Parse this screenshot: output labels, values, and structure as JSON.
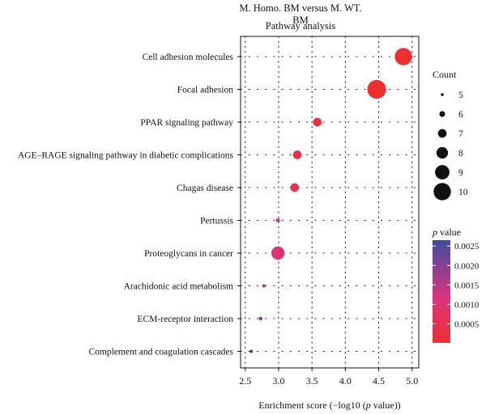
{
  "chart_data": {
    "type": "scatter",
    "title": "M. Homo. BM versus M. WT. BM",
    "subtitle": "Pathway analysis",
    "xlabel_prefix": "Enrichment score (−log10 (",
    "xlabel_italic": "p",
    "xlabel_suffix": " value))",
    "xlim": [
      2.43,
      5.1
    ],
    "xticks": [
      "2.5",
      "3.0",
      "3.5",
      "4.0",
      "4.5",
      "5.0"
    ],
    "xtick_values": [
      2.5,
      3.0,
      3.5,
      4.0,
      4.5,
      5.0
    ],
    "grid": "dotted",
    "categories": [
      "Cell adhesion molecules",
      "Focal adhesion",
      "PPAR signaling pathway",
      "AGE–RAGE signaling pathway in diabetic complications",
      "Chagas disease",
      "Pertussis",
      "Proteoglycans in cancer",
      "Arachidonic acid metabolism",
      "ECM-receptor interaction",
      "Complement and coagulation cascades"
    ],
    "points": [
      {
        "x": 4.87,
        "count": 10,
        "p": 1e-05
      },
      {
        "x": 4.47,
        "count": 10.5,
        "p": 3e-05
      },
      {
        "x": 3.58,
        "count": 7,
        "p": 0.00026
      },
      {
        "x": 3.28,
        "count": 7,
        "p": 0.00052
      },
      {
        "x": 3.24,
        "count": 7,
        "p": 0.00058
      },
      {
        "x": 2.99,
        "count": 5.4,
        "p": 0.00102
      },
      {
        "x": 2.99,
        "count": 8.6,
        "p": 0.00102
      },
      {
        "x": 2.78,
        "count": 5.2,
        "p": 0.00166
      },
      {
        "x": 2.73,
        "count": 5.3,
        "p": 0.00186
      },
      {
        "x": 2.59,
        "count": 5.2,
        "p": 0.00257
      }
    ],
    "size_legend": {
      "title": "Count",
      "values": [
        5,
        6,
        7,
        8,
        9,
        10
      ]
    },
    "color_legend": {
      "title_italic": "p",
      "title_suffix": " value",
      "ticks": [
        "0.0025",
        "0.0020",
        "0.0015",
        "0.0010",
        "0.0005"
      ],
      "tick_values": [
        0.0025,
        0.002,
        0.0015,
        0.001,
        0.0005
      ],
      "range": [
        1e-05,
        0.00265
      ],
      "low_color": "#EE3030",
      "mid_color": "#D9347F",
      "high_color": "#3F4C9E"
    }
  }
}
